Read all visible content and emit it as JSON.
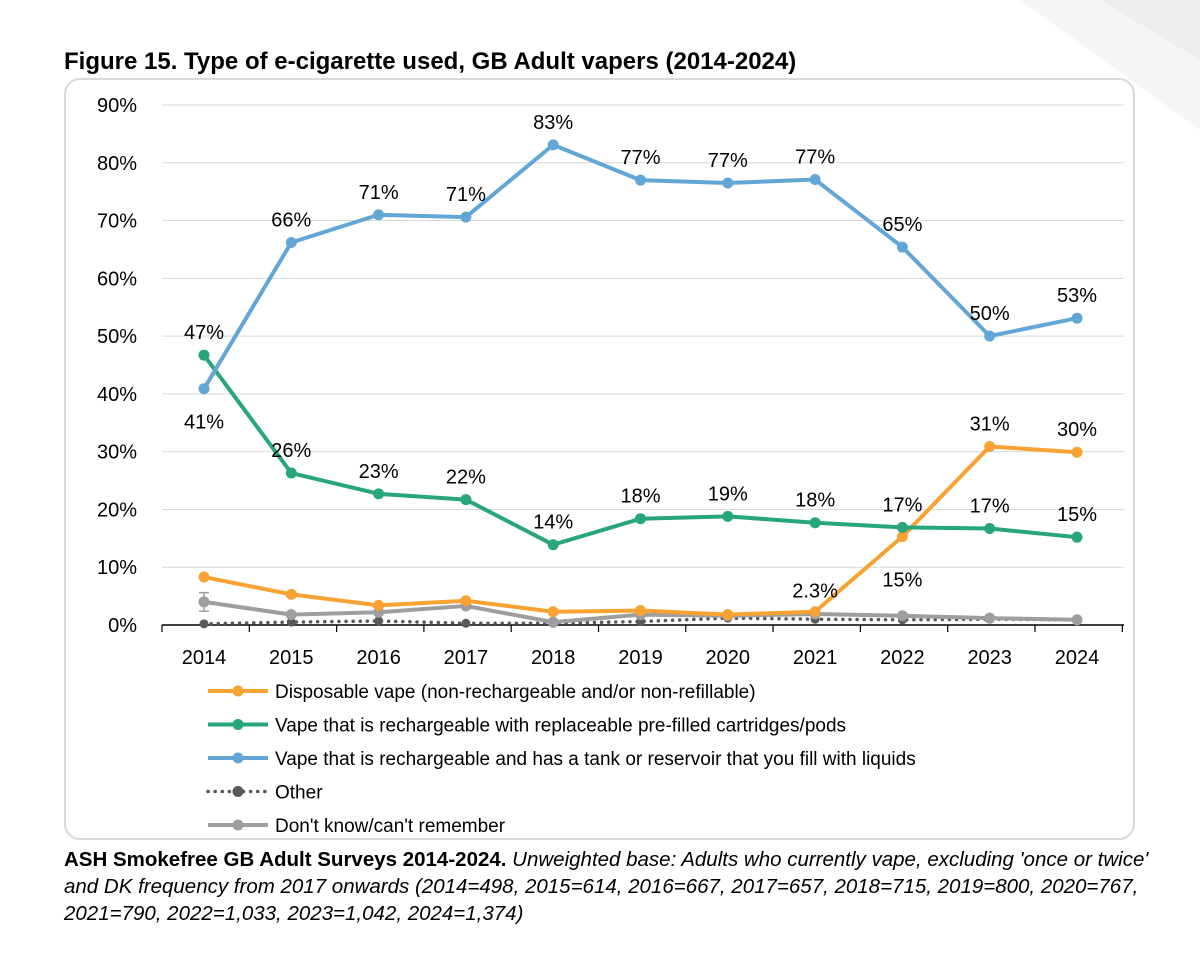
{
  "figure": {
    "title": "Figure 15. Type of e-cigarette used, GB Adult vapers (2014-2024)"
  },
  "caption": {
    "source": "ASH Smokefree GB Adult Surveys 2014-2024.",
    "note": "Unweighted base: Adults who currently vape, excluding 'once or twice' and DK frequency from 2017 onwards (2014=498, 2015=614, 2016=667, 2017=657, 2018=715, 2019=800, 2020=767, 2021=790, 2022=1,033, 2023=1,042, 2024=1,374)"
  },
  "colors": {
    "disposable": "#F7A233",
    "pods": "#27A57C",
    "tank": "#62A6D6",
    "other": "#595959",
    "dontknow": "#9E9E9E",
    "grid": "#d9d9d9",
    "axis": "#000000"
  },
  "chart_data": {
    "type": "line",
    "title": "Figure 15. Type of e-cigarette used, GB Adult vapers (2014-2024)",
    "xlabel": "",
    "ylabel": "",
    "ylim": [
      0,
      90
    ],
    "yticks": [
      0,
      10,
      20,
      30,
      40,
      50,
      60,
      70,
      80,
      90
    ],
    "ytick_labels": [
      "0%",
      "10%",
      "20%",
      "30%",
      "40%",
      "50%",
      "60%",
      "70%",
      "80%",
      "90%"
    ],
    "categories": [
      "2014",
      "2015",
      "2016",
      "2017",
      "2018",
      "2019",
      "2020",
      "2021",
      "2022",
      "2023",
      "2024"
    ],
    "grid": true,
    "legend_position": "bottom",
    "series": [
      {
        "key": "disposable",
        "name": "Disposable vape (non-rechargeable and/or non-refillable)",
        "style": "solid",
        "values": [
          8.3,
          5.3,
          3.4,
          4.2,
          2.3,
          2.5,
          1.8,
          2.3,
          15.3,
          30.9,
          29.9
        ],
        "labels": [
          null,
          null,
          null,
          null,
          null,
          null,
          null,
          "2.3%",
          "15%",
          "31%",
          "30%"
        ]
      },
      {
        "key": "pods",
        "name": "Vape that is rechargeable with replaceable pre-filled cartridges/pods",
        "style": "solid",
        "values": [
          46.7,
          26.3,
          22.7,
          21.7,
          13.9,
          18.4,
          18.8,
          17.7,
          16.9,
          16.7,
          15.2
        ],
        "labels": [
          "47%",
          "26%",
          "23%",
          "22%",
          "14%",
          "18%",
          "19%",
          "18%",
          "17%",
          "17%",
          "15%"
        ]
      },
      {
        "key": "tank",
        "name": "Vape that is rechargeable and has a tank or reservoir that you fill with liquids",
        "style": "solid",
        "values": [
          40.9,
          66.2,
          71.0,
          70.6,
          83.1,
          77.0,
          76.5,
          77.1,
          65.4,
          50.0,
          53.1
        ],
        "labels": [
          "41%",
          "66%",
          "71%",
          "71%",
          "83%",
          "77%",
          "77%",
          "77%",
          "65%",
          "50%",
          "53%"
        ]
      },
      {
        "key": "other",
        "name": "Other",
        "style": "dotted",
        "values": [
          0.2,
          0.5,
          0.7,
          0.3,
          0.3,
          0.6,
          1.2,
          1.0,
          0.9,
          1.0,
          0.9
        ],
        "labels": [
          null,
          null,
          null,
          null,
          null,
          null,
          null,
          null,
          null,
          null,
          null
        ]
      },
      {
        "key": "dontknow",
        "name": "Don't know/can't remember",
        "style": "solid",
        "values": [
          4.0,
          1.8,
          2.2,
          3.3,
          0.5,
          1.8,
          1.6,
          1.9,
          1.6,
          1.2,
          0.9
        ],
        "labels": [
          null,
          null,
          null,
          null,
          null,
          null,
          null,
          null,
          null,
          null,
          null
        ]
      }
    ]
  }
}
